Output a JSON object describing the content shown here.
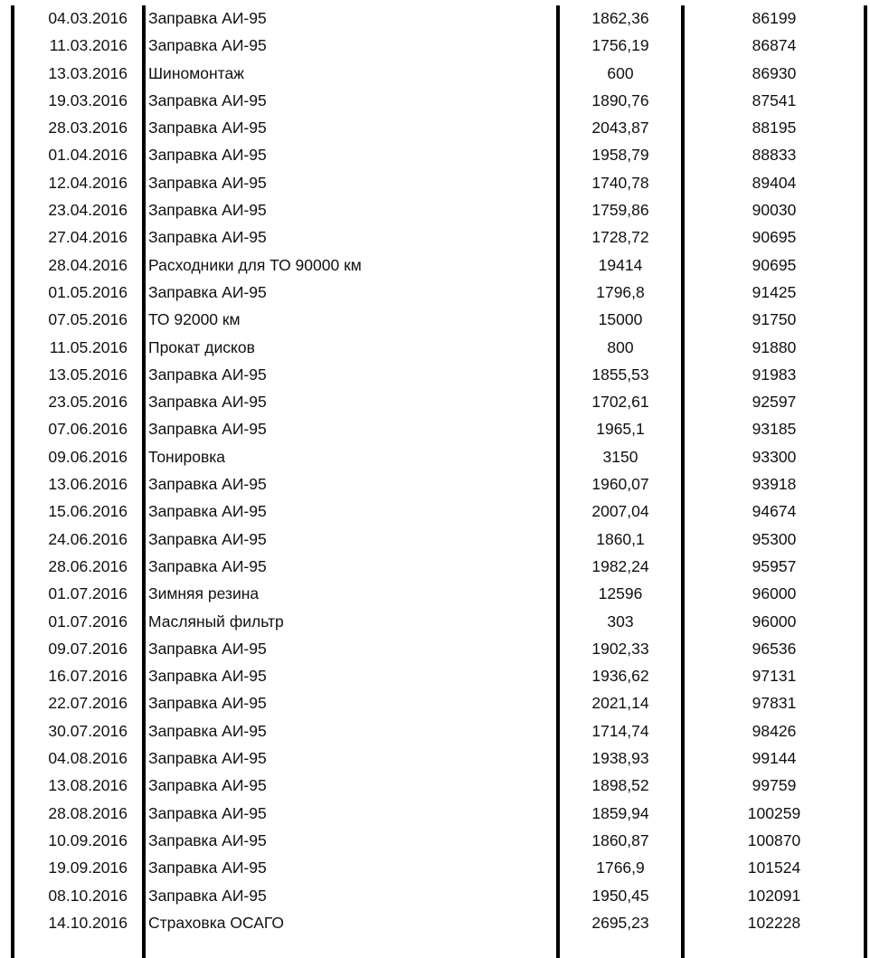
{
  "rows": [
    {
      "date": "04.03.2016",
      "desc": "Заправка АИ-95",
      "amount": "1862,36",
      "mileage": "86199"
    },
    {
      "date": "11.03.2016",
      "desc": "Заправка АИ-95",
      "amount": "1756,19",
      "mileage": "86874"
    },
    {
      "date": "13.03.2016",
      "desc": "Шиномонтаж",
      "amount": "600",
      "mileage": "86930"
    },
    {
      "date": "19.03.2016",
      "desc": "Заправка АИ-95",
      "amount": "1890,76",
      "mileage": "87541"
    },
    {
      "date": "28.03.2016",
      "desc": "Заправка АИ-95",
      "amount": "2043,87",
      "mileage": "88195"
    },
    {
      "date": "01.04.2016",
      "desc": "Заправка АИ-95",
      "amount": "1958,79",
      "mileage": "88833"
    },
    {
      "date": "12.04.2016",
      "desc": "Заправка АИ-95",
      "amount": "1740,78",
      "mileage": "89404"
    },
    {
      "date": "23.04.2016",
      "desc": "Заправка АИ-95",
      "amount": "1759,86",
      "mileage": "90030"
    },
    {
      "date": "27.04.2016",
      "desc": "Заправка АИ-95",
      "amount": "1728,72",
      "mileage": "90695"
    },
    {
      "date": "28.04.2016",
      "desc": "Расходники для ТО 90000 км",
      "amount": "19414",
      "mileage": "90695"
    },
    {
      "date": "01.05.2016",
      "desc": "Заправка АИ-95",
      "amount": "1796,8",
      "mileage": "91425"
    },
    {
      "date": "07.05.2016",
      "desc": "ТО 92000 км",
      "amount": "15000",
      "mileage": "91750"
    },
    {
      "date": "11.05.2016",
      "desc": "Прокат дисков",
      "amount": "800",
      "mileage": "91880"
    },
    {
      "date": "13.05.2016",
      "desc": "Заправка АИ-95",
      "amount": "1855,53",
      "mileage": "91983"
    },
    {
      "date": "23.05.2016",
      "desc": "Заправка АИ-95",
      "amount": "1702,61",
      "mileage": "92597"
    },
    {
      "date": "07.06.2016",
      "desc": "Заправка АИ-95",
      "amount": "1965,1",
      "mileage": "93185"
    },
    {
      "date": "09.06.2016",
      "desc": "Тонировка",
      "amount": "3150",
      "mileage": "93300"
    },
    {
      "date": "13.06.2016",
      "desc": "Заправка АИ-95",
      "amount": "1960,07",
      "mileage": "93918"
    },
    {
      "date": "15.06.2016",
      "desc": "Заправка АИ-95",
      "amount": "2007,04",
      "mileage": "94674"
    },
    {
      "date": "24.06.2016",
      "desc": "Заправка АИ-95",
      "amount": "1860,1",
      "mileage": "95300"
    },
    {
      "date": "28.06.2016",
      "desc": "Заправка АИ-95",
      "amount": "1982,24",
      "mileage": "95957"
    },
    {
      "date": "01.07.2016",
      "desc": "Зимняя резина",
      "amount": "12596",
      "mileage": "96000"
    },
    {
      "date": "01.07.2016",
      "desc": "Масляный фильтр",
      "amount": "303",
      "mileage": "96000"
    },
    {
      "date": "09.07.2016",
      "desc": "Заправка АИ-95",
      "amount": "1902,33",
      "mileage": "96536"
    },
    {
      "date": "16.07.2016",
      "desc": "Заправка АИ-95",
      "amount": "1936,62",
      "mileage": "97131"
    },
    {
      "date": "22.07.2016",
      "desc": "Заправка АИ-95",
      "amount": "2021,14",
      "mileage": "97831"
    },
    {
      "date": "30.07.2016",
      "desc": "Заправка АИ-95",
      "amount": "1714,74",
      "mileage": "98426"
    },
    {
      "date": "04.08.2016",
      "desc": "Заправка АИ-95",
      "amount": "1938,93",
      "mileage": "99144"
    },
    {
      "date": "13.08.2016",
      "desc": "Заправка АИ-95",
      "amount": "1898,52",
      "mileage": "99759"
    },
    {
      "date": "28.08.2016",
      "desc": "Заправка АИ-95",
      "amount": "1859,94",
      "mileage": "100259"
    },
    {
      "date": "10.09.2016",
      "desc": "Заправка АИ-95",
      "amount": "1860,87",
      "mileage": "100870"
    },
    {
      "date": "19.09.2016",
      "desc": "Заправка АИ-95",
      "amount": "1766,9",
      "mileage": "101524"
    },
    {
      "date": "08.10.2016",
      "desc": "Заправка АИ-95",
      "amount": "1950,45",
      "mileage": "102091"
    },
    {
      "date": "14.10.2016",
      "desc": "Страховка ОСАГО",
      "amount": "2695,23",
      "mileage": "102228"
    }
  ]
}
